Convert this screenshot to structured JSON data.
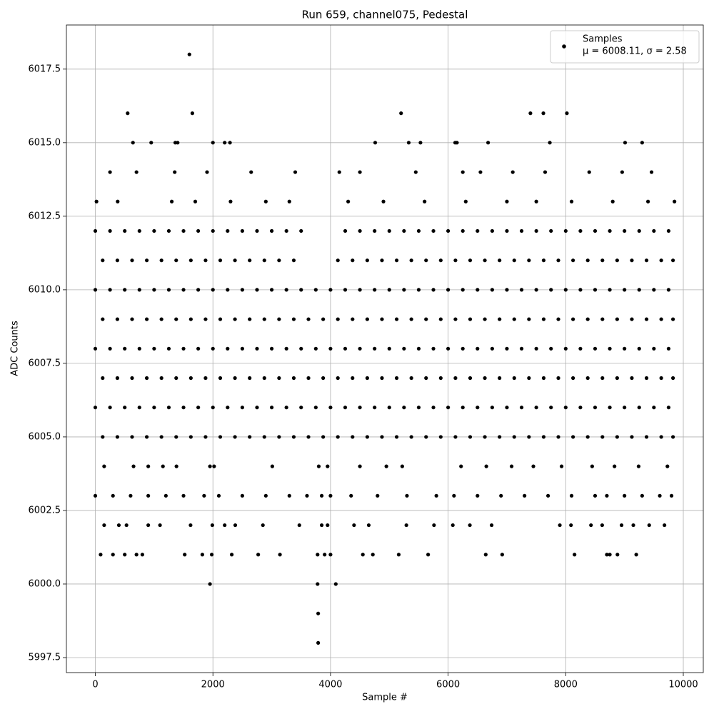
{
  "chart_data": {
    "type": "scatter",
    "title": "Run 659, channel075, Pedestal",
    "x_label": "Sample #",
    "y_label": "ADC Counts",
    "xlim": [
      -492,
      10340
    ],
    "ylim": [
      5996.99,
      6019.0
    ],
    "xticks": [
      0,
      2000,
      4000,
      6000,
      8000,
      10000
    ],
    "yticks": [
      5997.5,
      {
        "value": 6000,
        "label": "6000.0"
      },
      6002.5,
      {
        "value": 6005,
        "label": "6005.0"
      },
      6007.5,
      {
        "value": 6010,
        "label": "6010.0"
      },
      6012.5,
      {
        "value": 6015,
        "label": "6015.0"
      },
      6017.5
    ],
    "grid": true,
    "legend_position": "upper right",
    "legend_note": "μ = 6008.11, σ = 2.58",
    "series": [
      {
        "name": "Samples",
        "color": "#000000",
        "x": [
          0,
          250,
          500,
          750,
          1000,
          1250,
          1500,
          1750,
          2000,
          2250,
          2500,
          2750,
          3000,
          3250,
          3500,
          4250,
          4500,
          4750,
          5000,
          5250,
          5500,
          5750,
          6000,
          6250,
          6500,
          6750,
          7000,
          7250,
          7500,
          7750,
          8000,
          8250,
          8500,
          8750,
          9000,
          9250,
          9500,
          9750,
          125,
          375,
          625,
          875,
          1125,
          1375,
          1625,
          1875,
          2125,
          2375,
          2625,
          2875,
          3125,
          3375,
          4125,
          4375,
          4625,
          4875,
          5125,
          5375,
          5625,
          5875,
          6125,
          6375,
          6625,
          6875,
          7125,
          7375,
          7625,
          7875,
          8125,
          8375,
          8625,
          8875,
          9125,
          9375,
          9625,
          9825,
          0,
          250,
          500,
          750,
          1000,
          1250,
          1500,
          1750,
          2000,
          2250,
          2500,
          2750,
          3000,
          3250,
          3500,
          3750,
          4000,
          4250,
          4500,
          4750,
          5000,
          5250,
          5500,
          5750,
          6000,
          6250,
          6500,
          6750,
          7000,
          7250,
          7500,
          7750,
          8000,
          8250,
          8500,
          8750,
          9000,
          9250,
          9500,
          9750,
          125,
          375,
          625,
          875,
          1125,
          1375,
          1625,
          1875,
          2125,
          2375,
          2625,
          2875,
          3125,
          3375,
          3625,
          3875,
          4125,
          4375,
          4625,
          4875,
          5125,
          5375,
          5625,
          5875,
          6125,
          6375,
          6625,
          6875,
          7125,
          7375,
          7625,
          7875,
          8125,
          8375,
          8625,
          8875,
          9125,
          9375,
          9625,
          9825,
          0,
          250,
          500,
          750,
          1000,
          1250,
          1500,
          1750,
          2000,
          2250,
          2500,
          2750,
          3000,
          3250,
          3500,
          3750,
          4000,
          4250,
          4500,
          4750,
          5000,
          5250,
          5500,
          5750,
          6000,
          6250,
          6500,
          6750,
          7000,
          7250,
          7500,
          7750,
          8000,
          8250,
          8500,
          8750,
          9000,
          9250,
          9500,
          9750,
          125,
          375,
          625,
          875,
          1125,
          1375,
          1625,
          1875,
          2125,
          2375,
          2625,
          2875,
          3125,
          3375,
          3625,
          3875,
          4125,
          4375,
          4625,
          4875,
          5125,
          5375,
          5625,
          5875,
          6125,
          6375,
          6625,
          6875,
          7125,
          7375,
          7625,
          7875,
          8125,
          8375,
          8625,
          8875,
          9125,
          9375,
          9625,
          9825,
          0,
          250,
          500,
          750,
          1000,
          1250,
          1500,
          1750,
          2000,
          2250,
          2500,
          2750,
          3000,
          3250,
          3500,
          3750,
          4000,
          4250,
          4500,
          4750,
          5000,
          5250,
          5500,
          5750,
          6000,
          6250,
          6500,
          6750,
          7000,
          7250,
          7500,
          7750,
          8000,
          8250,
          8500,
          8750,
          9000,
          9250,
          9500,
          9750,
          125,
          375,
          625,
          875,
          1125,
          1375,
          1625,
          1875,
          2125,
          2375,
          2625,
          2875,
          3125,
          3375,
          3625,
          3875,
          4125,
          4375,
          4625,
          4875,
          5125,
          5375,
          5625,
          5875,
          6125,
          6375,
          6625,
          6875,
          7125,
          7375,
          7625,
          7875,
          8125,
          8375,
          8625,
          8875,
          9125,
          9375,
          9625,
          9825,
          20,
          380,
          1300,
          1700,
          2300,
          2900,
          3300,
          4300,
          4900,
          5600,
          6300,
          7000,
          7500,
          8100,
          8800,
          9400,
          9850,
          250,
          700,
          1350,
          1900,
          2650,
          3400,
          4150,
          4500,
          5450,
          6250,
          6550,
          7100,
          7650,
          8400,
          8960,
          9460,
          640,
          950,
          1360,
          1400,
          2000,
          2200,
          2290,
          4760,
          5330,
          5530,
          6120,
          6150,
          6680,
          7730,
          9010,
          9300,
          550,
          1650,
          5200,
          7400,
          7620,
          8020,
          1600,
          150,
          650,
          900,
          1150,
          1380,
          1950,
          2020,
          3010,
          3800,
          3950,
          4500,
          4950,
          5220,
          6220,
          6650,
          7080,
          7450,
          7930,
          8450,
          8830,
          9240,
          9730,
          0,
          300,
          600,
          900,
          1200,
          1500,
          1850,
          2100,
          2500,
          2900,
          3300,
          3600,
          3850,
          4000,
          4350,
          4800,
          5300,
          5800,
          6100,
          6500,
          6900,
          7300,
          7700,
          8100,
          8500,
          8700,
          9000,
          9300,
          9600,
          9800,
          150,
          400,
          530,
          900,
          1100,
          1620,
          1990,
          2200,
          2380,
          2850,
          3470,
          3850,
          3950,
          4400,
          4650,
          5290,
          5760,
          6080,
          6370,
          6740,
          7900,
          8090,
          8430,
          8620,
          8950,
          9150,
          9420,
          9680,
          90,
          300,
          500,
          700,
          800,
          1520,
          1820,
          1980,
          2320,
          2770,
          3140,
          3780,
          3900,
          4000,
          4550,
          4720,
          5160,
          5660,
          6640,
          6920,
          8150,
          8700,
          8750,
          8880,
          9200,
          1950,
          3780,
          4090,
          3790,
          3790
        ],
        "y": [
          6012,
          6012,
          6012,
          6012,
          6012,
          6012,
          6012,
          6012,
          6012,
          6012,
          6012,
          6012,
          6012,
          6012,
          6012,
          6012,
          6012,
          6012,
          6012,
          6012,
          6012,
          6012,
          6012,
          6012,
          6012,
          6012,
          6012,
          6012,
          6012,
          6012,
          6012,
          6012,
          6012,
          6012,
          6012,
          6012,
          6012,
          6012,
          6011,
          6011,
          6011,
          6011,
          6011,
          6011,
          6011,
          6011,
          6011,
          6011,
          6011,
          6011,
          6011,
          6011,
          6011,
          6011,
          6011,
          6011,
          6011,
          6011,
          6011,
          6011,
          6011,
          6011,
          6011,
          6011,
          6011,
          6011,
          6011,
          6011,
          6011,
          6011,
          6011,
          6011,
          6011,
          6011,
          6011,
          6011,
          6010,
          6010,
          6010,
          6010,
          6010,
          6010,
          6010,
          6010,
          6010,
          6010,
          6010,
          6010,
          6010,
          6010,
          6010,
          6010,
          6010,
          6010,
          6010,
          6010,
          6010,
          6010,
          6010,
          6010,
          6010,
          6010,
          6010,
          6010,
          6010,
          6010,
          6010,
          6010,
          6010,
          6010,
          6010,
          6010,
          6010,
          6010,
          6010,
          6010,
          6009,
          6009,
          6009,
          6009,
          6009,
          6009,
          6009,
          6009,
          6009,
          6009,
          6009,
          6009,
          6009,
          6009,
          6009,
          6009,
          6009,
          6009,
          6009,
          6009,
          6009,
          6009,
          6009,
          6009,
          6009,
          6009,
          6009,
          6009,
          6009,
          6009,
          6009,
          6009,
          6009,
          6009,
          6009,
          6009,
          6009,
          6009,
          6009,
          6009,
          6008,
          6008,
          6008,
          6008,
          6008,
          6008,
          6008,
          6008,
          6008,
          6008,
          6008,
          6008,
          6008,
          6008,
          6008,
          6008,
          6008,
          6008,
          6008,
          6008,
          6008,
          6008,
          6008,
          6008,
          6008,
          6008,
          6008,
          6008,
          6008,
          6008,
          6008,
          6008,
          6008,
          6008,
          6008,
          6008,
          6008,
          6008,
          6008,
          6008,
          6007,
          6007,
          6007,
          6007,
          6007,
          6007,
          6007,
          6007,
          6007,
          6007,
          6007,
          6007,
          6007,
          6007,
          6007,
          6007,
          6007,
          6007,
          6007,
          6007,
          6007,
          6007,
          6007,
          6007,
          6007,
          6007,
          6007,
          6007,
          6007,
          6007,
          6007,
          6007,
          6007,
          6007,
          6007,
          6007,
          6007,
          6007,
          6007,
          6007,
          6006,
          6006,
          6006,
          6006,
          6006,
          6006,
          6006,
          6006,
          6006,
          6006,
          6006,
          6006,
          6006,
          6006,
          6006,
          6006,
          6006,
          6006,
          6006,
          6006,
          6006,
          6006,
          6006,
          6006,
          6006,
          6006,
          6006,
          6006,
          6006,
          6006,
          6006,
          6006,
          6006,
          6006,
          6006,
          6006,
          6006,
          6006,
          6006,
          6006,
          6005,
          6005,
          6005,
          6005,
          6005,
          6005,
          6005,
          6005,
          6005,
          6005,
          6005,
          6005,
          6005,
          6005,
          6005,
          6005,
          6005,
          6005,
          6005,
          6005,
          6005,
          6005,
          6005,
          6005,
          6005,
          6005,
          6005,
          6005,
          6005,
          6005,
          6005,
          6005,
          6005,
          6005,
          6005,
          6005,
          6005,
          6005,
          6005,
          6005,
          6013,
          6013,
          6013,
          6013,
          6013,
          6013,
          6013,
          6013,
          6013,
          6013,
          6013,
          6013,
          6013,
          6013,
          6013,
          6013,
          6013,
          6014,
          6014,
          6014,
          6014,
          6014,
          6014,
          6014,
          6014,
          6014,
          6014,
          6014,
          6014,
          6014,
          6014,
          6014,
          6014,
          6015,
          6015,
          6015,
          6015,
          6015,
          6015,
          6015,
          6015,
          6015,
          6015,
          6015,
          6015,
          6015,
          6015,
          6015,
          6015,
          6016,
          6016,
          6016,
          6016,
          6016,
          6016,
          6018,
          6004,
          6004,
          6004,
          6004,
          6004,
          6004,
          6004,
          6004,
          6004,
          6004,
          6004,
          6004,
          6004,
          6004,
          6004,
          6004,
          6004,
          6004,
          6004,
          6004,
          6004,
          6004,
          6003,
          6003,
          6003,
          6003,
          6003,
          6003,
          6003,
          6003,
          6003,
          6003,
          6003,
          6003,
          6003,
          6003,
          6003,
          6003,
          6003,
          6003,
          6003,
          6003,
          6003,
          6003,
          6003,
          6003,
          6003,
          6003,
          6003,
          6003,
          6003,
          6003,
          6002,
          6002,
          6002,
          6002,
          6002,
          6002,
          6002,
          6002,
          6002,
          6002,
          6002,
          6002,
          6002,
          6002,
          6002,
          6002,
          6002,
          6002,
          6002,
          6002,
          6002,
          6002,
          6002,
          6002,
          6002,
          6002,
          6002,
          6002,
          6001,
          6001,
          6001,
          6001,
          6001,
          6001,
          6001,
          6001,
          6001,
          6001,
          6001,
          6001,
          6001,
          6001,
          6001,
          6001,
          6001,
          6001,
          6001,
          6001,
          6001,
          6001,
          6001,
          6001,
          6001,
          6000,
          6000,
          6000,
          5999,
          5998
        ]
      }
    ]
  }
}
